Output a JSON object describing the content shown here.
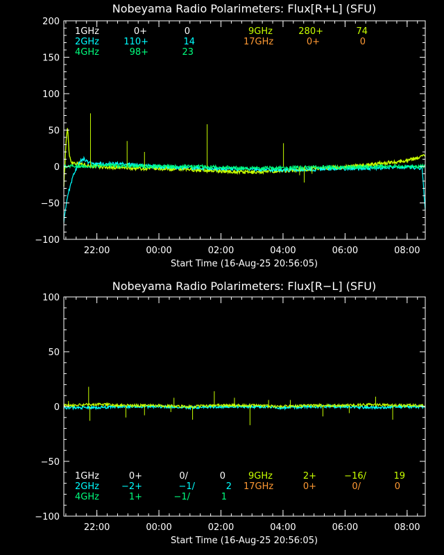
{
  "colors": {
    "background": "#000000",
    "axes": "#ffffff",
    "1GHz": "#ffffff",
    "2GHz": "#00ffff",
    "4GHz": "#00ff7f",
    "9GHz": "#c8ff00",
    "17GHz": "#ff9933"
  },
  "chart_data": [
    {
      "type": "line",
      "title": "Nobeyama Radio Polarimeters: Flux[R+L] (SFU)",
      "xlabel": "Start Time (16-Aug-25 20:56:05)",
      "ylabel": "",
      "x_unit": "hours since start",
      "xlim": [
        0,
        11.65
      ],
      "ylim": [
        -100,
        200
      ],
      "yticks": [
        -100,
        -50,
        0,
        50,
        100,
        150,
        200
      ],
      "xticks": [
        {
          "value": 1.065,
          "label": "22:00"
        },
        {
          "value": 3.065,
          "label": "00:00"
        },
        {
          "value": 5.065,
          "label": "02:00"
        },
        {
          "value": 7.065,
          "label": "04:00"
        },
        {
          "value": 9.065,
          "label": "06:00"
        },
        {
          "value": 11.065,
          "label": "08:00"
        }
      ],
      "legend": [
        {
          "name": "1GHz",
          "v1": "0+",
          "v2": "0",
          "color_key": "1GHz"
        },
        {
          "name": "2GHz",
          "v1": "110+",
          "v2": "14",
          "color_key": "2GHz"
        },
        {
          "name": "4GHz",
          "v1": "98+",
          "v2": "23",
          "color_key": "4GHz"
        },
        {
          "name": "9GHz",
          "v1": "280+",
          "v2": "74",
          "color_key": "9GHz"
        },
        {
          "name": "17GHz",
          "v1": "0+",
          "v2": "0",
          "color_key": "17GHz"
        }
      ],
      "series": [
        {
          "name": "9GHz",
          "color_key": "9GHz",
          "x": [
            0,
            0.08,
            0.12,
            0.18,
            0.25,
            0.35,
            0.5,
            1,
            2,
            3,
            4,
            5,
            6,
            7,
            7.5,
            8,
            9,
            10,
            11,
            11.4,
            11.65
          ],
          "y": [
            -25,
            40,
            52,
            15,
            6,
            5,
            4,
            0,
            -2,
            -3,
            -4,
            -6,
            -8,
            -6,
            -5,
            -3,
            -1,
            3,
            8,
            12,
            16
          ]
        },
        {
          "name": "2GHz",
          "color_key": "2GHz",
          "x": [
            0,
            0.05,
            0.15,
            0.25,
            0.35,
            0.45,
            0.55,
            0.65,
            0.8,
            1,
            2,
            3,
            4,
            5,
            6,
            7,
            8,
            9,
            10,
            11,
            11.55,
            11.65
          ],
          "y": [
            -75,
            -60,
            -35,
            -20,
            -8,
            2,
            8,
            10,
            6,
            4,
            3,
            0,
            -2,
            -3,
            -4,
            -5,
            -4,
            -3,
            -2,
            -1,
            -2,
            -60
          ]
        },
        {
          "name": "4GHz",
          "color_key": "4GHz",
          "x": [
            0,
            1,
            2,
            3,
            4,
            5,
            6,
            7,
            8,
            9,
            10,
            11,
            11.65
          ],
          "y": [
            0,
            1,
            1,
            0,
            0,
            -1,
            -2,
            -2,
            -1,
            -1,
            0,
            0,
            0
          ]
        }
      ],
      "spikes": [
        {
          "x": 0.86,
          "y": 73,
          "series": "9GHz"
        },
        {
          "x": 2.04,
          "y": 35,
          "series": "9GHz"
        },
        {
          "x": 2.6,
          "y": 20,
          "series": "9GHz"
        },
        {
          "x": 4.62,
          "y": 58,
          "series": "9GHz"
        },
        {
          "x": 7.08,
          "y": 32,
          "series": "9GHz"
        },
        {
          "x": 7.6,
          "y": -12,
          "series": "9GHz"
        },
        {
          "x": 7.75,
          "y": -22,
          "series": "9GHz"
        },
        {
          "x": 8.0,
          "y": -10,
          "series": "9GHz"
        }
      ]
    },
    {
      "type": "line",
      "title": "Nobeyama Radio Polarimeters: Flux[R−L] (SFU)",
      "xlabel": "Start Time (16-Aug-25 20:56:05)",
      "ylabel": "",
      "x_unit": "hours since start",
      "xlim": [
        0,
        11.65
      ],
      "ylim": [
        -100,
        100
      ],
      "yticks": [
        -100,
        -50,
        0,
        50,
        100
      ],
      "xticks": [
        {
          "value": 1.065,
          "label": "22:00"
        },
        {
          "value": 3.065,
          "label": "00:00"
        },
        {
          "value": 5.065,
          "label": "02:00"
        },
        {
          "value": 7.065,
          "label": "04:00"
        },
        {
          "value": 9.065,
          "label": "06:00"
        },
        {
          "value": 11.065,
          "label": "08:00"
        }
      ],
      "legend": [
        {
          "name": "1GHz",
          "v1": "0+",
          "v2": "0/",
          "v3": "0",
          "color_key": "1GHz"
        },
        {
          "name": "2GHz",
          "v1": "−2+",
          "v2": "−1/",
          "v3": "2",
          "color_key": "2GHz"
        },
        {
          "name": "4GHz",
          "v1": "1+",
          "v2": "−1/",
          "v3": "1",
          "color_key": "4GHz"
        },
        {
          "name": "9GHz",
          "v1": "2+",
          "v2": "−16/",
          "v3": "19",
          "color_key": "9GHz"
        },
        {
          "name": "17GHz",
          "v1": "0+",
          "v2": "0/",
          "v3": "0",
          "color_key": "17GHz"
        }
      ],
      "series": [
        {
          "name": "2GHz",
          "color_key": "2GHz",
          "x": [
            0,
            1,
            2,
            3,
            4,
            5,
            6,
            7,
            8,
            9,
            10,
            11,
            11.65
          ],
          "y": [
            -1,
            -1,
            0,
            0,
            -1,
            0,
            0,
            -1,
            0,
            0,
            -1,
            0,
            0
          ]
        },
        {
          "name": "9GHz",
          "color_key": "9GHz",
          "x": [
            0,
            1,
            2,
            3,
            4,
            5,
            6,
            7,
            8,
            9,
            10,
            11,
            11.65
          ],
          "y": [
            1,
            2,
            1,
            1,
            0,
            1,
            1,
            0,
            1,
            1,
            2,
            1,
            1
          ]
        }
      ],
      "spikes": [
        {
          "x": 0.15,
          "y": 5,
          "series": "9GHz"
        },
        {
          "x": 0.8,
          "y": 18,
          "series": "9GHz"
        },
        {
          "x": 0.84,
          "y": -13,
          "series": "9GHz"
        },
        {
          "x": 2.0,
          "y": -10,
          "series": "9GHz"
        },
        {
          "x": 2.6,
          "y": -8,
          "series": "9GHz"
        },
        {
          "x": 3.45,
          "y": -5,
          "series": "9GHz"
        },
        {
          "x": 3.55,
          "y": 8,
          "series": "9GHz"
        },
        {
          "x": 4.15,
          "y": -12,
          "series": "9GHz"
        },
        {
          "x": 4.85,
          "y": 14,
          "series": "9GHz"
        },
        {
          "x": 5.5,
          "y": 8,
          "series": "9GHz"
        },
        {
          "x": 6.0,
          "y": -17,
          "series": "9GHz"
        },
        {
          "x": 6.6,
          "y": 6,
          "series": "9GHz"
        },
        {
          "x": 7.3,
          "y": 6,
          "series": "9GHz"
        },
        {
          "x": 8.35,
          "y": -9,
          "series": "9GHz"
        },
        {
          "x": 9.2,
          "y": -6,
          "series": "9GHz"
        },
        {
          "x": 10.05,
          "y": 9,
          "series": "9GHz"
        },
        {
          "x": 10.6,
          "y": -12,
          "series": "9GHz"
        }
      ]
    }
  ]
}
